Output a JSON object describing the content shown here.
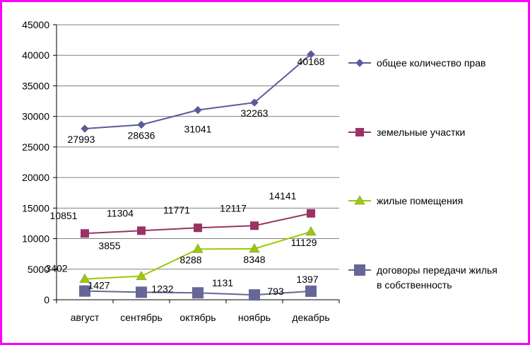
{
  "chart_data": {
    "type": "line",
    "title": "",
    "xlabel": "",
    "ylabel": "",
    "categories": [
      "август",
      "сентябрь",
      "октябрь",
      "ноябрь",
      "декабрь"
    ],
    "ylim": [
      0,
      45000
    ],
    "yticks": [
      0,
      5000,
      10000,
      15000,
      20000,
      25000,
      30000,
      35000,
      40000,
      45000
    ],
    "grid": true,
    "legend_position": "right",
    "series": [
      {
        "name": "общее количество прав",
        "values": [
          27993,
          28636,
          31041,
          32263,
          40168
        ],
        "color": "#5b5b9a",
        "marker": "diamond"
      },
      {
        "name": "земельные участки",
        "values": [
          10851,
          11304,
          11771,
          12117,
          14141
        ],
        "color": "#993366",
        "marker": "square"
      },
      {
        "name": "жилые помещения",
        "values": [
          3402,
          3855,
          8288,
          8348,
          11129
        ],
        "color": "#99cc00",
        "marker": "triangle"
      },
      {
        "name": "договоры передачи жилья в собственность",
        "values": [
          1427,
          1232,
          1131,
          793,
          1397
        ],
        "color": "#666699",
        "marker": "bigsquare"
      }
    ]
  }
}
